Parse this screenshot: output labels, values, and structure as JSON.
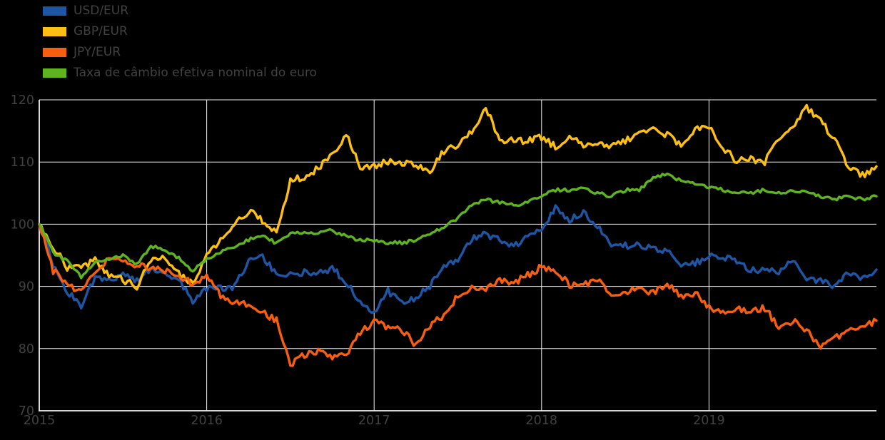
{
  "page": {
    "background": "#000000",
    "text_color": "#414141",
    "grid_color": "#f2f2f2"
  },
  "legend": [
    {
      "label": "USD/EUR",
      "color": "#1f55a5"
    },
    {
      "label": "GBP/EUR",
      "color": "#fdbf11"
    },
    {
      "label": "JPY/EUR",
      "color": "#f95d0e"
    },
    {
      "label": "Taxa de câmbio efetiva nominal do euro",
      "color": "#5eb41e"
    }
  ],
  "chart_data": {
    "type": "line",
    "title": "",
    "xlabel": "",
    "ylabel": "",
    "xlim": [
      2015,
      2020
    ],
    "ylim": [
      70,
      120
    ],
    "x_ticks": [
      2015,
      2016,
      2017,
      2018,
      2019
    ],
    "y_ticks": [
      70,
      80,
      90,
      100,
      110,
      120
    ],
    "grid": true,
    "legend_position": "top-left",
    "x_start": 2015.0,
    "x_step_years": 0.0833333,
    "series": [
      {
        "name": "USD/EUR",
        "color": "#1f55a5",
        "values": [
          100,
          93.5,
          89.0,
          87.0,
          91.5,
          90.8,
          92.2,
          90.8,
          93.0,
          92.3,
          91.0,
          87.5,
          89.8,
          89.6,
          89.9,
          94.1,
          94.7,
          92.0,
          91.8,
          92.3,
          92.2,
          92.9,
          90.7,
          87.5,
          86.0,
          89.2,
          87.3,
          88.2,
          90.1,
          92.9,
          94.4,
          97.7,
          98.4,
          97.6,
          96.3,
          98.4,
          99.2,
          102.7,
          100.8,
          101.9,
          99.8,
          96.6,
          96.5,
          96.7,
          95.9,
          95.9,
          93.6,
          93.7,
          94.8,
          94.6,
          94.0,
          92.7,
          92.6,
          92.3,
          94.0,
          91.5,
          90.9,
          90.1,
          92.2,
          91.1,
          92.7
        ]
      },
      {
        "name": "GBP/EUR",
        "color": "#fdbf11",
        "values": [
          100,
          96.5,
          93.0,
          93.0,
          94.2,
          92.0,
          91.0,
          90.0,
          94.2,
          95.0,
          92.0,
          90.3,
          94.7,
          97.8,
          99.8,
          102.2,
          100.5,
          98.5,
          107.0,
          107.7,
          109.0,
          111.3,
          114.5,
          109.3,
          109.5,
          110.0,
          109.8,
          109.6,
          108.4,
          111.8,
          112.8,
          114.8,
          119.0,
          113.2,
          113.5,
          113.3,
          114.0,
          112.5,
          114.2,
          112.4,
          112.9,
          112.5,
          113.5,
          114.3,
          115.4,
          114.3,
          112.8,
          115.2,
          115.6,
          112.4,
          110.1,
          110.5,
          110.0,
          113.7,
          115.3,
          118.8,
          116.5,
          113.8,
          109.0,
          107.8,
          109.3
        ]
      },
      {
        "name": "JPY/EUR",
        "color": "#f95d0e",
        "values": [
          100,
          92.5,
          90.5,
          89.0,
          92.0,
          94.5,
          94.0,
          93.5,
          93.0,
          92.5,
          91.8,
          90.5,
          91.5,
          88.5,
          87.5,
          87.0,
          85.8,
          84.5,
          77.5,
          79.0,
          79.5,
          78.5,
          79.0,
          82.5,
          84.5,
          83.5,
          83.0,
          80.5,
          83.5,
          85.5,
          88.5,
          89.8,
          89.5,
          91.2,
          90.5,
          91.8,
          93.2,
          92.5,
          90.3,
          90.3,
          91.2,
          88.0,
          89.2,
          89.5,
          89.0,
          90.5,
          88.3,
          89.0,
          86.5,
          86.0,
          86.5,
          86.0,
          86.5,
          83.5,
          84.5,
          83.0,
          80.0,
          81.5,
          83.0,
          83.5,
          84.5
        ]
      },
      {
        "name": "Taxa de câmbio efetiva nominal do euro",
        "color": "#5eb41e",
        "values": [
          100,
          95.5,
          94.0,
          91.5,
          94.0,
          94.5,
          95.0,
          93.5,
          96.5,
          96.0,
          94.5,
          92.5,
          94.5,
          95.5,
          96.5,
          97.5,
          98.0,
          97.0,
          98.5,
          98.5,
          98.5,
          99.0,
          98.0,
          97.5,
          97.5,
          97.0,
          97.0,
          97.5,
          98.5,
          99.5,
          101.0,
          103.0,
          104.0,
          103.5,
          103.0,
          103.5,
          104.5,
          105.5,
          105.5,
          106.0,
          105.0,
          104.5,
          105.5,
          105.5,
          107.5,
          108.0,
          107.0,
          106.5,
          106.0,
          105.5,
          105.0,
          105.0,
          105.5,
          105.0,
          105.5,
          105.0,
          104.5,
          104.0,
          104.5,
          104.0,
          104.5
        ]
      }
    ]
  }
}
